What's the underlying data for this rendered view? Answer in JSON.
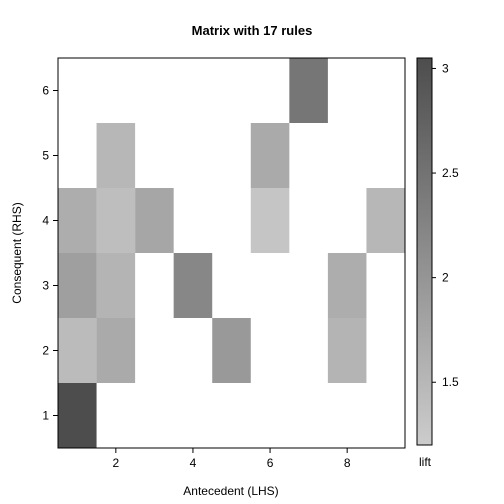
{
  "chart_data": {
    "type": "heatmap",
    "title": "Matrix with 17 rules",
    "xlabel": "Antecedent (LHS)",
    "ylabel": "Consequent (RHS)",
    "xlim": [
      0.5,
      9.5
    ],
    "ylim": [
      0.5,
      6.5
    ],
    "x_ticks": [
      2,
      4,
      6,
      8
    ],
    "y_ticks": [
      1,
      2,
      3,
      4,
      5,
      6
    ],
    "cells": [
      {
        "lhs": 1,
        "rhs": 1,
        "lift": 3.05
      },
      {
        "lhs": 1,
        "rhs": 2,
        "lift": 1.45
      },
      {
        "lhs": 1,
        "rhs": 3,
        "lift": 1.85
      },
      {
        "lhs": 1,
        "rhs": 4,
        "lift": 1.65
      },
      {
        "lhs": 2,
        "rhs": 2,
        "lift": 1.7
      },
      {
        "lhs": 2,
        "rhs": 3,
        "lift": 1.55
      },
      {
        "lhs": 2,
        "rhs": 4,
        "lift": 1.4
      },
      {
        "lhs": 2,
        "rhs": 5,
        "lift": 1.5
      },
      {
        "lhs": 3,
        "rhs": 4,
        "lift": 1.75
      },
      {
        "lhs": 4,
        "rhs": 3,
        "lift": 2.2
      },
      {
        "lhs": 5,
        "rhs": 2,
        "lift": 1.95
      },
      {
        "lhs": 6,
        "rhs": 4,
        "lift": 1.3
      },
      {
        "lhs": 6,
        "rhs": 5,
        "lift": 1.7
      },
      {
        "lhs": 7,
        "rhs": 6,
        "lift": 2.45
      },
      {
        "lhs": 8,
        "rhs": 2,
        "lift": 1.55
      },
      {
        "lhs": 8,
        "rhs": 3,
        "lift": 1.65
      },
      {
        "lhs": 9,
        "rhs": 4,
        "lift": 1.5
      }
    ],
    "colorbar": {
      "label": "lift",
      "range": [
        1.2,
        3.05
      ],
      "ticks": [
        "1.5",
        "2",
        "2.5",
        "3"
      ],
      "color_low": "#cccccc",
      "color_high": "#4d4d4d"
    },
    "grid": false,
    "legend_position": "right"
  }
}
